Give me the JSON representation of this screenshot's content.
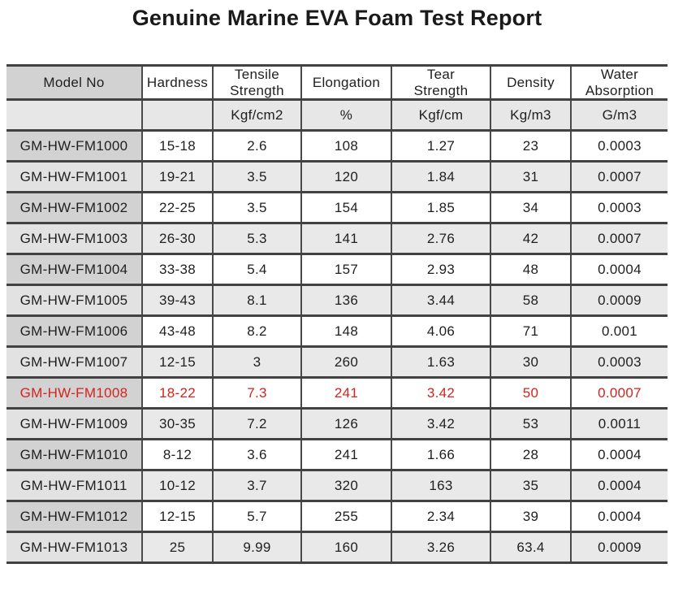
{
  "title": "Genuine Marine EVA Foam Test Report",
  "colors": {
    "highlight_text": "#d2241f",
    "header_model_bg": "#d2d2d2",
    "shaded_row_bg": "#e9e9e9",
    "units_row_bg": "#e7e7e7",
    "border": "#424242"
  },
  "table": {
    "columns": [
      {
        "key": "model",
        "label_lines": [
          "Model No"
        ],
        "unit": ""
      },
      {
        "key": "hardness",
        "label_lines": [
          "Hardness"
        ],
        "unit": ""
      },
      {
        "key": "tensile",
        "label_lines": [
          "Tensile",
          "Strength"
        ],
        "unit": "Kgf/cm2"
      },
      {
        "key": "elongation",
        "label_lines": [
          "Elongation"
        ],
        "unit": "%"
      },
      {
        "key": "tear",
        "label_lines": [
          "Tear",
          "Strength"
        ],
        "unit": "Kgf/cm"
      },
      {
        "key": "density",
        "label_lines": [
          "Density"
        ],
        "unit": "Kg/m3"
      },
      {
        "key": "water",
        "label_lines": [
          "Water",
          "Absorption"
        ],
        "unit": "G/m3"
      }
    ],
    "rows": [
      {
        "model": "GM-HW-FM1000",
        "hardness": "15-18",
        "tensile": "2.6",
        "elongation": "108",
        "tear": "1.27",
        "density": "23",
        "water": "0.0003",
        "highlight": false
      },
      {
        "model": "GM-HW-FM1001",
        "hardness": "19-21",
        "tensile": "3.5",
        "elongation": "120",
        "tear": "1.84",
        "density": "31",
        "water": "0.0007",
        "highlight": false
      },
      {
        "model": "GM-HW-FM1002",
        "hardness": "22-25",
        "tensile": "3.5",
        "elongation": "154",
        "tear": "1.85",
        "density": "34",
        "water": "0.0003",
        "highlight": false
      },
      {
        "model": "GM-HW-FM1003",
        "hardness": "26-30",
        "tensile": "5.3",
        "elongation": "141",
        "tear": "2.76",
        "density": "42",
        "water": "0.0007",
        "highlight": false
      },
      {
        "model": "GM-HW-FM1004",
        "hardness": "33-38",
        "tensile": "5.4",
        "elongation": "157",
        "tear": "2.93",
        "density": "48",
        "water": "0.0004",
        "highlight": false
      },
      {
        "model": "GM-HW-FM1005",
        "hardness": "39-43",
        "tensile": "8.1",
        "elongation": "136",
        "tear": "3.44",
        "density": "58",
        "water": "0.0009",
        "highlight": false
      },
      {
        "model": "GM-HW-FM1006",
        "hardness": "43-48",
        "tensile": "8.2",
        "elongation": "148",
        "tear": "4.06",
        "density": "71",
        "water": "0.001",
        "highlight": false
      },
      {
        "model": "GM-HW-FM1007",
        "hardness": "12-15",
        "tensile": "3",
        "elongation": "260",
        "tear": "1.63",
        "density": "30",
        "water": "0.0003",
        "highlight": false
      },
      {
        "model": "GM-HW-FM1008",
        "hardness": "18-22",
        "tensile": "7.3",
        "elongation": "241",
        "tear": "3.42",
        "density": "50",
        "water": "0.0007",
        "highlight": true
      },
      {
        "model": "GM-HW-FM1009",
        "hardness": "30-35",
        "tensile": "7.2",
        "elongation": "126",
        "tear": "3.42",
        "density": "53",
        "water": "0.0011",
        "highlight": false
      },
      {
        "model": "GM-HW-FM1010",
        "hardness": "8-12",
        "tensile": "3.6",
        "elongation": "241",
        "tear": "1.66",
        "density": "28",
        "water": "0.0004",
        "highlight": false
      },
      {
        "model": "GM-HW-FM1011",
        "hardness": "10-12",
        "tensile": "3.7",
        "elongation": "320",
        "tear": "163",
        "density": "35",
        "water": "0.0004",
        "highlight": false
      },
      {
        "model": "GM-HW-FM1012",
        "hardness": "12-15",
        "tensile": "5.7",
        "elongation": "255",
        "tear": "2.34",
        "density": "39",
        "water": "0.0004",
        "highlight": false
      },
      {
        "model": "GM-HW-FM1013",
        "hardness": "25",
        "tensile": "9.99",
        "elongation": "160",
        "tear": "3.26",
        "density": "63.4",
        "water": "0.0009",
        "highlight": false
      }
    ]
  }
}
